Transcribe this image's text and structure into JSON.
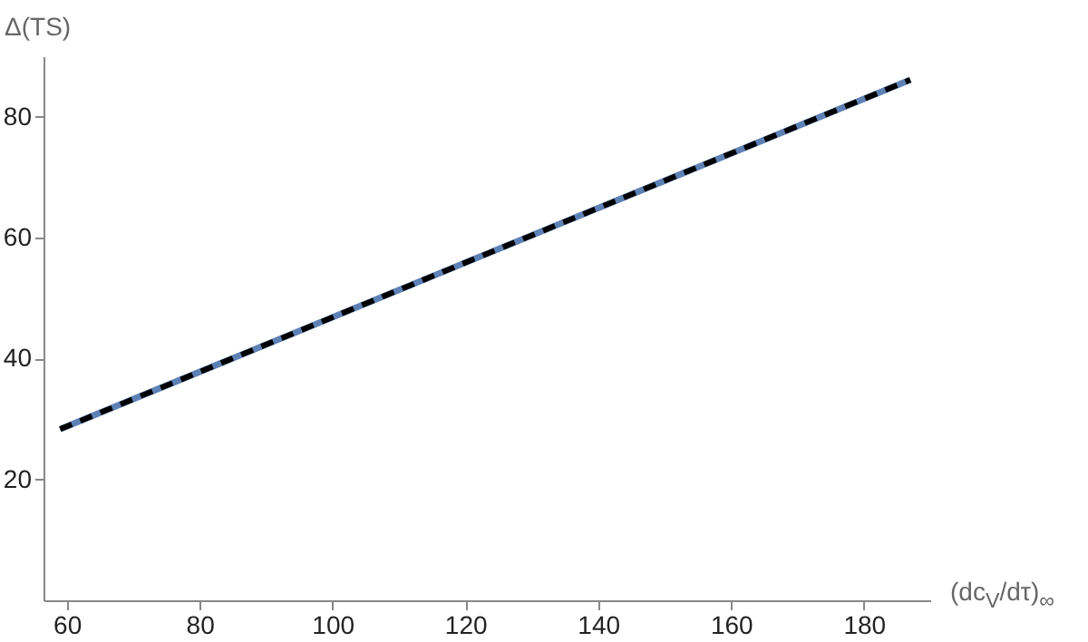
{
  "chart_data": {
    "type": "line",
    "xlabel": "(dc$_{V}$/dτ)$_{∞}$",
    "ylabel": "Δ(TS)",
    "x": [
      59,
      187
    ],
    "series": [
      {
        "color": "#5e81b5",
        "line_style": "solid",
        "values": [
          28.3,
          86.1
        ]
      },
      {
        "color": "#000000",
        "line_style": "dashed",
        "values": [
          28.3,
          86.1
        ]
      }
    ],
    "xlim": [
      56.5,
      190
    ],
    "ylim": [
      0,
      90
    ],
    "xticks": [
      60,
      80,
      100,
      120,
      140,
      160,
      180
    ],
    "yticks": [
      20,
      40,
      60,
      80
    ],
    "grid": false
  }
}
